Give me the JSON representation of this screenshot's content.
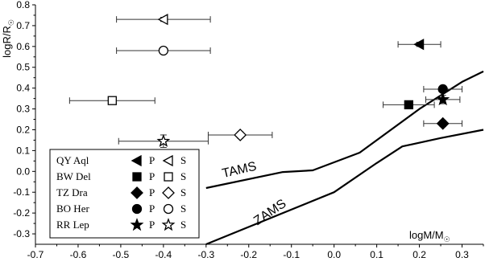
{
  "chart_data": {
    "type": "scatter",
    "title": "",
    "xlabel": "logM/M",
    "ylabel": "logR/R",
    "xlabel_subscript": "☉",
    "ylabel_subscript": "☉",
    "xlim": [
      -0.7,
      0.35
    ],
    "ylim": [
      -0.35,
      0.8
    ],
    "x_ticks": [
      -0.7,
      -0.6,
      -0.5,
      -0.4,
      -0.3,
      -0.2,
      -0.1,
      0.0,
      0.1,
      0.2,
      0.3
    ],
    "x_tick_labels": [
      "-0.7",
      "-0.6",
      "-0.5",
      "-0.4",
      "-0.3",
      "-0.2",
      "-0.1",
      "0.0",
      "0.1",
      "0.2",
      "0.3"
    ],
    "y_ticks": [
      -0.3,
      -0.2,
      -0.1,
      0.0,
      0.1,
      0.2,
      0.3,
      0.4,
      0.5,
      0.6,
      0.7,
      0.8
    ],
    "y_tick_labels": [
      "-0.3",
      "-0.2",
      "-0.1",
      "0.0",
      "0.1",
      "0.2",
      "0.3",
      "0.4",
      "0.5",
      "0.6",
      "0.7",
      "0.8"
    ],
    "grid": false,
    "legend_position": "bottom-left",
    "legend_primary_label": "P",
    "legend_secondary_label": "S",
    "series": [
      {
        "name": "QY Aql",
        "symbol": "triangle-left",
        "primary": {
          "x": 0.2,
          "y": 0.61,
          "xerr": 0.05,
          "yerr": 0.01
        },
        "secondary": {
          "x": -0.4,
          "y": 0.73,
          "xerr": 0.11,
          "yerr": 0.01
        }
      },
      {
        "name": "BW Del",
        "symbol": "square",
        "primary": {
          "x": 0.175,
          "y": 0.32,
          "xerr": 0.06,
          "yerr": 0.015
        },
        "secondary": {
          "x": -0.52,
          "y": 0.34,
          "xerr": 0.1,
          "yerr": 0.015
        }
      },
      {
        "name": "TZ Dra",
        "symbol": "diamond",
        "primary": {
          "x": 0.255,
          "y": 0.23,
          "xerr": 0.045,
          "yerr": 0.015
        },
        "secondary": {
          "x": -0.22,
          "y": 0.175,
          "xerr": 0.075,
          "yerr": 0.015
        }
      },
      {
        "name": "BO Her",
        "symbol": "circle",
        "primary": {
          "x": 0.255,
          "y": 0.395,
          "xerr": 0.045,
          "yerr": 0.015
        },
        "secondary": {
          "x": -0.4,
          "y": 0.58,
          "xerr": 0.11,
          "yerr": 0.015
        }
      },
      {
        "name": "RR Lep",
        "symbol": "star",
        "primary": {
          "x": 0.255,
          "y": 0.345,
          "xerr": 0.04,
          "yerr": 0.02
        },
        "secondary": {
          "x": -0.4,
          "y": 0.145,
          "xerr": 0.105,
          "yerr": 0.03
        }
      }
    ],
    "curves": [
      {
        "name": "TAMS",
        "points": [
          [
            -0.3,
            -0.08
          ],
          [
            -0.12,
            -0.003
          ],
          [
            -0.05,
            0.005
          ],
          [
            0.06,
            0.09
          ],
          [
            0.2,
            0.3
          ],
          [
            0.3,
            0.43
          ],
          [
            0.35,
            0.48
          ]
        ]
      },
      {
        "name": "ZAMS",
        "points": [
          [
            -0.3,
            -0.35
          ],
          [
            0.0,
            -0.1
          ],
          [
            0.1,
            0.04
          ],
          [
            0.16,
            0.12
          ],
          [
            0.25,
            0.16
          ],
          [
            0.35,
            0.2
          ]
        ]
      }
    ],
    "annotations": [
      {
        "text": "TAMS",
        "x": -0.26,
        "y": -0.03,
        "rotation": -13
      },
      {
        "text": "ZAMS",
        "x": -0.18,
        "y": -0.26,
        "rotation": -34
      }
    ]
  }
}
